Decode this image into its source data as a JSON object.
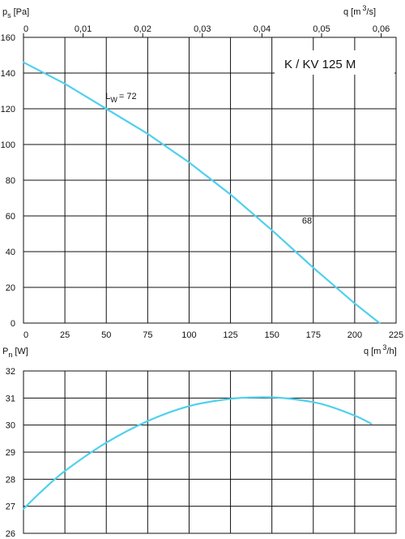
{
  "chart_data": [
    {
      "type": "line",
      "title": "K / KV 125 M",
      "ylabel": {
        "symbol": "p",
        "sub": "s",
        "unit": "[Pa]"
      },
      "xlabel_bottom": {
        "text": "q [m",
        "sup": "3",
        "tail": "/h]"
      },
      "xlabel_top": {
        "text": "q [m",
        "sup": "3",
        "tail": "/s]"
      },
      "ylim": [
        0,
        160
      ],
      "xlim": [
        0,
        225
      ],
      "y_ticks": [
        "0",
        "20",
        "40",
        "60",
        "80",
        "100",
        "120",
        "140",
        "160"
      ],
      "x_ticks": [
        "0",
        "25",
        "50",
        "75",
        "100",
        "125",
        "150",
        "175",
        "200",
        "225"
      ],
      "x_top_ticks": [
        "0",
        "0,01",
        "0,02",
        "0,03",
        "0,04",
        "0,05",
        "0,06"
      ],
      "x_top_values": [
        0,
        0.01,
        0.02,
        0.03,
        0.04,
        0.05,
        0.06
      ],
      "series": [
        {
          "x": [
            0,
            25,
            50,
            75,
            100,
            125,
            150,
            175,
            200,
            215
          ],
          "y": [
            146,
            134,
            120,
            106,
            90,
            72,
            52,
            31,
            11,
            0
          ]
        }
      ],
      "annotations": [
        {
          "symbol": "L",
          "sub": "W",
          "text": "= 72",
          "x": 52,
          "y": 125
        },
        {
          "text": "68",
          "x": 155,
          "y": 52
        }
      ]
    },
    {
      "type": "line",
      "ylabel": {
        "symbol": "P",
        "sub": "n",
        "unit": "[W]"
      },
      "xlabel": {
        "text": "q [m",
        "sup": "3",
        "tail": "/h]"
      },
      "ylim": [
        26,
        32
      ],
      "xlim": [
        0,
        225
      ],
      "y_ticks": [
        "26",
        "27",
        "28",
        "29",
        "30",
        "31",
        "32"
      ],
      "series": [
        {
          "x": [
            0,
            10,
            25,
            50,
            75,
            100,
            125,
            145,
            160,
            180,
            200,
            210
          ],
          "y": [
            26.9,
            27.5,
            28.3,
            29.35,
            30.15,
            30.7,
            30.97,
            31.03,
            30.98,
            30.78,
            30.35,
            30.05
          ]
        }
      ]
    }
  ]
}
